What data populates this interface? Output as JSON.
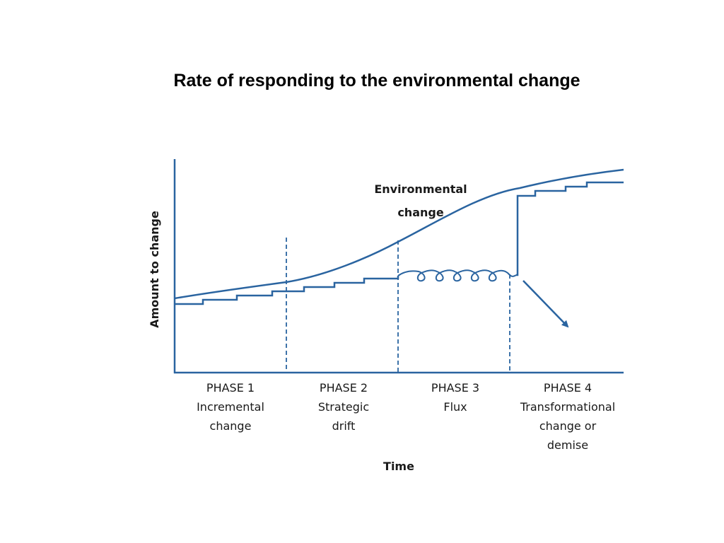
{
  "title": "Rate of responding to the environmental change",
  "diagram": {
    "y_axis_label": "Amount to change",
    "x_axis_label": "Time",
    "environmental_change_label": [
      "Environmental",
      "change"
    ],
    "phases": [
      {
        "lines": [
          "PHASE 1",
          "Incremental",
          "change"
        ]
      },
      {
        "lines": [
          "PHASE 2",
          "Strategic",
          "drift"
        ]
      },
      {
        "lines": [
          "PHASE 3",
          "Flux"
        ]
      },
      {
        "lines": [
          "PHASE 4",
          "Transformational",
          "change or",
          "demise"
        ]
      }
    ],
    "colors": {
      "line": "#2a64a0",
      "text": "#1a1a1a"
    }
  }
}
